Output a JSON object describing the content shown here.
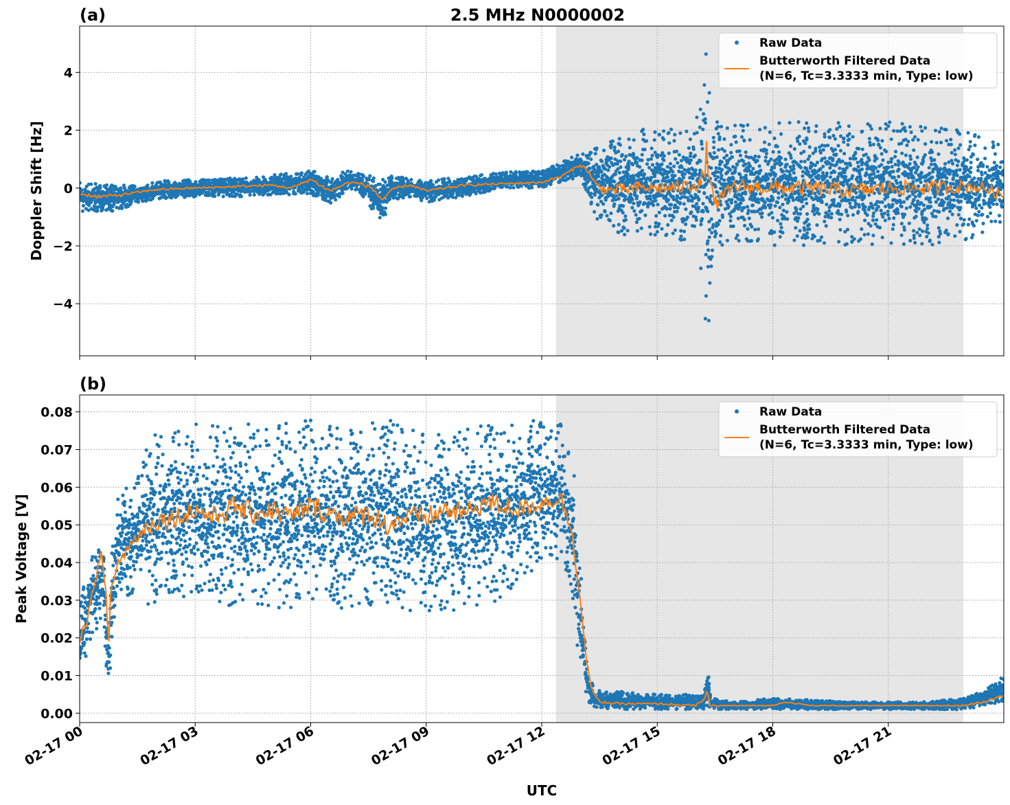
{
  "figure": {
    "title": "2.5 MHz N0000002",
    "xlabel": "UTC"
  },
  "colors": {
    "raw": "#1f77b4",
    "filtered": "#ff7f0e",
    "shade": "#e6e6e6",
    "grid": "#b0b0b0"
  },
  "chart_data": [
    {
      "type": "scatter",
      "panel_label": "(a)",
      "title": "2.5 MHz N0000002",
      "ylabel": "Doppler Shift [Hz]",
      "xlabel": "",
      "x_unit": "hours since 02-17 00:00 UTC",
      "xlim": [
        0,
        24
      ],
      "ylim": [
        -5.8,
        5.6
      ],
      "xticks": [
        0,
        3,
        6,
        9,
        12,
        15,
        18,
        21
      ],
      "xtick_labels": [
        "02-17 00",
        "02-17 03",
        "02-17 06",
        "02-17 09",
        "02-17 12",
        "02-17 15",
        "02-17 18",
        "02-17 21"
      ],
      "yticks": [
        -4,
        -2,
        0,
        2,
        4
      ],
      "ytick_labels": [
        "−4",
        "−2",
        "0",
        "2",
        "4"
      ],
      "shaded_span": [
        12.37,
        22.95
      ],
      "grid": true,
      "legend_position": "top-right",
      "legend": [
        "Raw Data",
        "Butterworth Filtered Data",
        "(N=6, Tc=3.3333 min, Type: low)"
      ],
      "series": [
        {
          "name": "Raw Data",
          "style": "points",
          "envelope_x": [
            0,
            1,
            1.5,
            2,
            3,
            4,
            5,
            6,
            6.5,
            7,
            7.3,
            7.8,
            8.2,
            8.6,
            9,
            10,
            11,
            12,
            12.5,
            13,
            13.25,
            13.5,
            14,
            15,
            16,
            16.3,
            16.6,
            17,
            18,
            19,
            20,
            21,
            22,
            23,
            24
          ],
          "envelope_low": [
            -0.8,
            -0.8,
            -0.5,
            -0.4,
            -0.3,
            -0.3,
            -0.25,
            -0.2,
            -0.6,
            0.0,
            -0.2,
            -1.2,
            -0.4,
            -0.3,
            -0.5,
            -0.3,
            0.0,
            0.0,
            0.2,
            0.4,
            -0.5,
            -1.3,
            -1.6,
            -1.7,
            -1.9,
            -5.2,
            -2.0,
            -1.9,
            -2.0,
            -2.0,
            -2.0,
            -2.0,
            -2.0,
            -1.8,
            -1.3
          ],
          "envelope_high": [
            0.2,
            0.1,
            0.1,
            0.25,
            0.3,
            0.35,
            0.45,
            0.6,
            0.45,
            0.6,
            0.55,
            0.3,
            0.45,
            0.3,
            0.25,
            0.4,
            0.55,
            0.6,
            0.9,
            1.2,
            1.3,
            1.6,
            1.9,
            2.1,
            2.2,
            5.0,
            2.2,
            2.2,
            2.3,
            2.3,
            2.3,
            2.3,
            2.2,
            2.0,
            1.5
          ]
        },
        {
          "name": "Butterworth Filtered Data",
          "style": "line",
          "x": [
            0,
            0.5,
            1,
            1.5,
            2,
            3,
            4,
            5,
            5.5,
            6,
            6.5,
            7,
            7.3,
            7.6,
            7.85,
            8.2,
            8.6,
            9,
            9.5,
            10,
            11,
            12,
            12.5,
            13,
            13.2,
            13.4,
            13.8,
            14.5,
            15.5,
            16.2,
            16.3,
            16.45,
            17,
            18,
            19,
            20,
            21,
            22,
            23,
            23.5,
            24
          ],
          "y": [
            -0.2,
            -0.3,
            -0.25,
            -0.15,
            -0.05,
            0.0,
            0.05,
            0.1,
            0.0,
            0.3,
            -0.1,
            0.2,
            0.15,
            0.0,
            -0.4,
            0.0,
            0.1,
            -0.1,
            0.0,
            0.1,
            0.15,
            0.2,
            0.4,
            0.8,
            0.6,
            0.1,
            -0.1,
            0.0,
            0.0,
            0.2,
            1.3,
            -0.6,
            0.05,
            0.0,
            0.0,
            -0.1,
            0.0,
            0.0,
            0.05,
            0.0,
            -0.3
          ]
        }
      ]
    },
    {
      "type": "scatter",
      "panel_label": "(b)",
      "title": "",
      "ylabel": "Peak Voltage [V]",
      "xlabel": "UTC",
      "x_unit": "hours since 02-17 00:00 UTC",
      "xlim": [
        0,
        24
      ],
      "ylim": [
        -0.0025,
        0.0845
      ],
      "xticks": [
        0,
        3,
        6,
        9,
        12,
        15,
        18,
        21
      ],
      "xtick_labels": [
        "02-17 00",
        "02-17 03",
        "02-17 06",
        "02-17 09",
        "02-17 12",
        "02-17 15",
        "02-17 18",
        "02-17 21"
      ],
      "yticks": [
        0.0,
        0.01,
        0.02,
        0.03,
        0.04,
        0.05,
        0.06,
        0.07,
        0.08
      ],
      "ytick_labels": [
        "0.00",
        "0.01",
        "0.02",
        "0.03",
        "0.04",
        "0.05",
        "0.06",
        "0.07",
        "0.08"
      ],
      "shaded_span": [
        12.37,
        22.95
      ],
      "grid": true,
      "legend_position": "top-right",
      "legend": [
        "Raw Data",
        "Butterworth Filtered Data",
        "(N=6, Tc=3.3333 min, Type: low)"
      ],
      "series": [
        {
          "name": "Raw Data",
          "style": "points",
          "envelope_x": [
            0,
            0.3,
            0.6,
            0.75,
            0.85,
            1.0,
            1.5,
            1.8,
            2.5,
            3,
            4,
            5,
            6,
            7,
            8,
            9,
            10,
            11,
            12,
            12.5,
            12.8,
            13.0,
            13.2,
            13.4,
            13.8,
            15,
            16.2,
            16.3,
            16.4,
            17,
            18,
            20,
            22,
            23,
            23.5,
            24
          ],
          "envelope_low": [
            0.008,
            0.02,
            0.025,
            0.005,
            0.02,
            0.03,
            0.032,
            0.028,
            0.03,
            0.028,
            0.028,
            0.028,
            0.027,
            0.028,
            0.028,
            0.025,
            0.028,
            0.03,
            0.04,
            0.04,
            0.03,
            0.01,
            0.002,
            0.001,
            0.001,
            0.001,
            0.001,
            0.002,
            0.001,
            0.001,
            0.001,
            0.001,
            0.001,
            0.001,
            0.002,
            0.003
          ],
          "envelope_high": [
            0.03,
            0.042,
            0.045,
            0.025,
            0.045,
            0.058,
            0.062,
            0.074,
            0.075,
            0.077,
            0.077,
            0.077,
            0.078,
            0.076,
            0.078,
            0.074,
            0.076,
            0.077,
            0.078,
            0.079,
            0.07,
            0.04,
            0.012,
            0.006,
            0.006,
            0.005,
            0.005,
            0.013,
            0.004,
            0.003,
            0.004,
            0.003,
            0.003,
            0.004,
            0.006,
            0.01
          ]
        },
        {
          "name": "Butterworth Filtered Data",
          "style": "line",
          "x": [
            0,
            0.2,
            0.4,
            0.55,
            0.7,
            0.75,
            0.8,
            1.0,
            1.2,
            1.5,
            1.8,
            2.0,
            2.5,
            3.0,
            3.5,
            4.0,
            4.5,
            5.0,
            5.5,
            6.0,
            6.5,
            7.0,
            7.5,
            8.0,
            8.5,
            9.0,
            9.5,
            10.0,
            10.5,
            11.0,
            11.5,
            12.0,
            12.5,
            12.8,
            13.0,
            13.15,
            13.3,
            13.5,
            14,
            15,
            16,
            16.25,
            16.3,
            16.35,
            17,
            18,
            18.3,
            19,
            20,
            21,
            22,
            22.9,
            23.5,
            24
          ],
          "y": [
            0.02,
            0.025,
            0.035,
            0.043,
            0.03,
            0.015,
            0.032,
            0.04,
            0.043,
            0.047,
            0.05,
            0.051,
            0.052,
            0.054,
            0.052,
            0.055,
            0.053,
            0.054,
            0.052,
            0.055,
            0.053,
            0.052,
            0.053,
            0.05,
            0.052,
            0.052,
            0.054,
            0.053,
            0.056,
            0.055,
            0.054,
            0.056,
            0.057,
            0.048,
            0.03,
            0.015,
            0.006,
            0.003,
            0.0025,
            0.0025,
            0.002,
            0.004,
            0.006,
            0.002,
            0.002,
            0.002,
            0.003,
            0.002,
            0.002,
            0.002,
            0.002,
            0.002,
            0.003,
            0.005
          ]
        }
      ]
    }
  ]
}
